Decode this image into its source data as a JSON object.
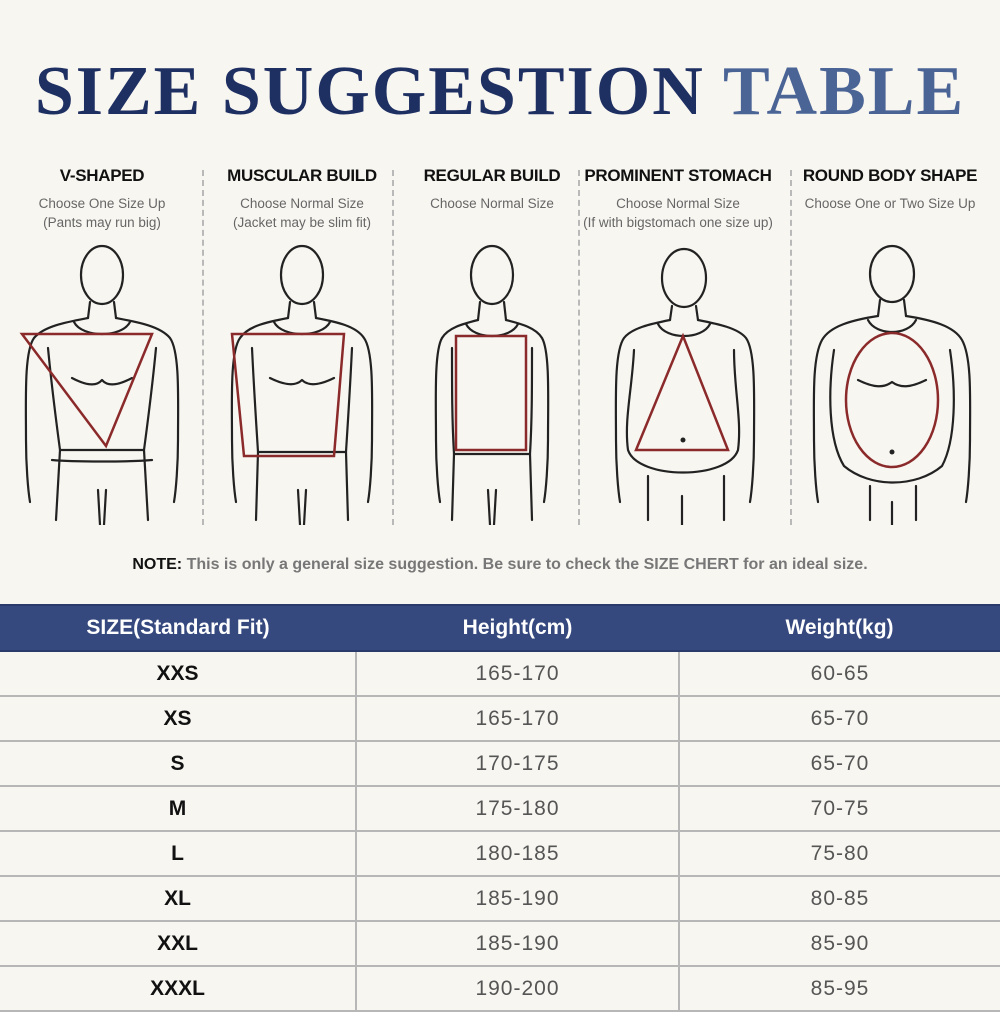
{
  "title": {
    "part1": "SIZE SUGGESTION",
    "part2": "TABLE"
  },
  "body_types": [
    {
      "name": "V-SHAPED",
      "line1": "Choose One Size Up",
      "line2": "(Pants may run big)"
    },
    {
      "name": "MUSCULAR BUILD",
      "line1": "Choose Normal Size",
      "line2": "(Jacket may be slim fit)"
    },
    {
      "name": "REGULAR BUILD",
      "line1": "Choose Normal Size",
      "line2": ""
    },
    {
      "name": "PROMINENT STOMACH",
      "line1": "Choose Normal Size",
      "line2": "(If with bigstomach one size up)"
    },
    {
      "name": "ROUND BODY SHAPE",
      "line1": "Choose One or Two Size Up",
      "line2": ""
    }
  ],
  "note": {
    "label": "NOTE:",
    "text": "This is only a general size suggestion. Be sure to check the SIZE CHERT for an ideal size."
  },
  "table": {
    "headers": [
      "SIZE(Standard Fit)",
      "Height(cm)",
      "Weight(kg)"
    ],
    "rows": [
      [
        "XXS",
        "165-170",
        "60-65"
      ],
      [
        "XS",
        "165-170",
        "65-70"
      ],
      [
        "S",
        "170-175",
        "65-70"
      ],
      [
        "M",
        "175-180",
        "70-75"
      ],
      [
        "L",
        "180-185",
        "75-80"
      ],
      [
        "XL",
        "185-190",
        "80-85"
      ],
      [
        "XXL",
        "185-190",
        "85-90"
      ],
      [
        "XXXL",
        "190-200",
        "85-95"
      ]
    ]
  },
  "colors": {
    "title_dark": "#1e2f62",
    "title_light": "#4b6496",
    "header_bg": "#36497f",
    "shape_stroke": "#8b2a2a"
  }
}
